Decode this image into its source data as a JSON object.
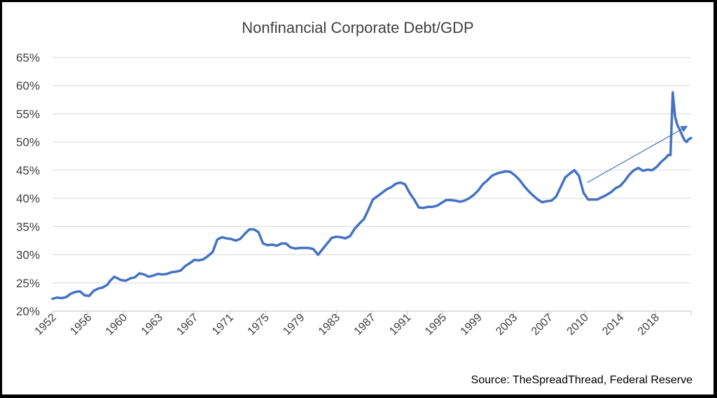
{
  "chart_data": {
    "type": "line",
    "title": "Nonfinancial Corporate Debt/GDP",
    "source": "Source: TheSpreadThread, Federal Reserve",
    "xlabel": "",
    "ylabel": "",
    "ylim": [
      0.2,
      0.65
    ],
    "xlim": [
      1952,
      2021.75
    ],
    "y_ticks": [
      0.2,
      0.25,
      0.3,
      0.35,
      0.4,
      0.45,
      0.5,
      0.55,
      0.6,
      0.65
    ],
    "y_tick_labels": [
      "20%",
      "25%",
      "30%",
      "35%",
      "40%",
      "45%",
      "50%",
      "55%",
      "60%",
      "65%"
    ],
    "x_tick_labels": [
      "1952",
      "1956",
      "1960",
      "1963",
      "1967",
      "1971",
      "1975",
      "1979",
      "1983",
      "1987",
      "1991",
      "1995",
      "1999",
      "2003",
      "2007",
      "2010",
      "2014",
      "2018"
    ],
    "grid": true,
    "series": [
      {
        "name": "Nonfinancial Corporate Debt/GDP",
        "color": "#4472C4",
        "x": [
          1952,
          1952.5,
          1953,
          1953.5,
          1954,
          1954.5,
          1955,
          1955.5,
          1956,
          1956.5,
          1957,
          1957.5,
          1958,
          1958.25,
          1958.75,
          1959.5,
          1960,
          1960.5,
          1961,
          1961.5,
          1962,
          1962.5,
          1963,
          1963.5,
          1964,
          1964.5,
          1965,
          1965.5,
          1966,
          1966.5,
          1967,
          1967.5,
          1968,
          1968.5,
          1969,
          1969.5,
          1970,
          1970.5,
          1971,
          1971.5,
          1972,
          1972.5,
          1973,
          1973.5,
          1974,
          1974.5,
          1975,
          1975.5,
          1976,
          1976.5,
          1977,
          1977.5,
          1978,
          1978.5,
          1979,
          1979.5,
          1980,
          1980.5,
          1981,
          1981.5,
          1982,
          1982.5,
          1983,
          1983.5,
          1984,
          1984.5,
          1985,
          1985.5,
          1986,
          1986.5,
          1987,
          1987.5,
          1988,
          1988.5,
          1989,
          1989.5,
          1990,
          1990.5,
          1991,
          1991.5,
          1992,
          1992.5,
          1993,
          1993.5,
          1994,
          1994.5,
          1995,
          1995.5,
          1996,
          1996.5,
          1997,
          1997.5,
          1998,
          1998.5,
          1999,
          1999.5,
          2000,
          2000.5,
          2001,
          2001.5,
          2002,
          2002.5,
          2003,
          2003.5,
          2004,
          2004.5,
          2005,
          2005.5,
          2006,
          2006.5,
          2007,
          2007.5,
          2008,
          2008.5,
          2009,
          2009.5,
          2010,
          2010.5,
          2011,
          2011.5,
          2012,
          2012.5,
          2013,
          2013.5,
          2014,
          2014.5,
          2015,
          2015.5,
          2016,
          2016.5,
          2017,
          2017.5,
          2018,
          2018.5,
          2019,
          2019.25,
          2019.5,
          2019.75,
          2020,
          2020.25,
          2020.5,
          2020.75,
          2021,
          2021.25,
          2021.5,
          2021.75
        ],
        "values": [
          0.222,
          0.224,
          0.223,
          0.225,
          0.231,
          0.234,
          0.235,
          0.228,
          0.227,
          0.236,
          0.24,
          0.242,
          0.247,
          0.253,
          0.261,
          0.255,
          0.254,
          0.258,
          0.26,
          0.267,
          0.265,
          0.261,
          0.263,
          0.266,
          0.265,
          0.266,
          0.269,
          0.27,
          0.272,
          0.28,
          0.285,
          0.291,
          0.29,
          0.292,
          0.298,
          0.305,
          0.327,
          0.331,
          0.329,
          0.328,
          0.325,
          0.328,
          0.337,
          0.345,
          0.345,
          0.34,
          0.32,
          0.317,
          0.318,
          0.316,
          0.32,
          0.32,
          0.313,
          0.311,
          0.312,
          0.312,
          0.312,
          0.31,
          0.3,
          0.31,
          0.32,
          0.33,
          0.332,
          0.331,
          0.329,
          0.333,
          0.346,
          0.355,
          0.363,
          0.38,
          0.398,
          0.404,
          0.41,
          0.416,
          0.42,
          0.426,
          0.428,
          0.425,
          0.41,
          0.398,
          0.384,
          0.383,
          0.385,
          0.385,
          0.387,
          0.392,
          0.397,
          0.397,
          0.396,
          0.394,
          0.396,
          0.4,
          0.406,
          0.414,
          0.425,
          0.432,
          0.44,
          0.444,
          0.446,
          0.448,
          0.447,
          0.441,
          0.433,
          0.422,
          0.413,
          0.405,
          0.398,
          0.393,
          0.395,
          0.396,
          0.403,
          0.42,
          0.437,
          0.444,
          0.45,
          0.44,
          0.41,
          0.398,
          0.398,
          0.398,
          0.402,
          0.406,
          0.411,
          0.418,
          0.422,
          0.431,
          0.442,
          0.45,
          0.454,
          0.449,
          0.451,
          0.45,
          0.456,
          0.465,
          0.472,
          0.477,
          0.477,
          0.588,
          0.545,
          0.53,
          0.522,
          0.513,
          0.504,
          0.5,
          0.505,
          0.507
        ]
      }
    ],
    "trend_arrow": {
      "color": "#4472C4",
      "from": {
        "x": 2010.4,
        "y": 0.428
      },
      "to": {
        "x": 2021.2,
        "y": 0.527
      }
    }
  }
}
